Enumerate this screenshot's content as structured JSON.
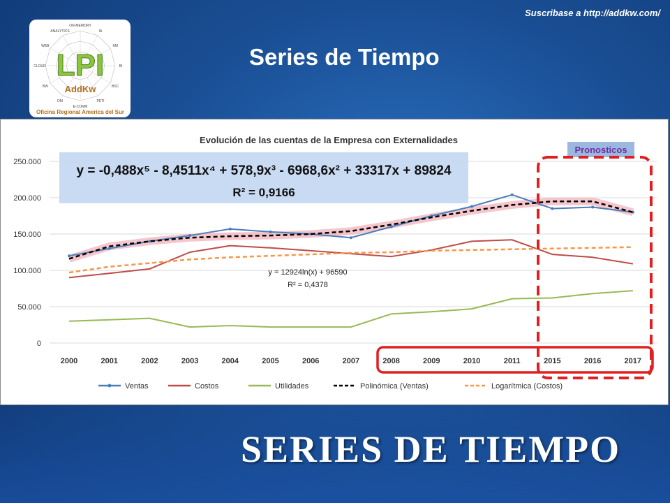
{
  "header": {
    "subscribe_text": "Suscribase a http://addkw.com/",
    "title": "Series de Tiempo"
  },
  "logo": {
    "brand": "LPI",
    "sub": "AddKw",
    "office": "Oficina Regional America del Sur",
    "radar_labels": [
      "ON-MEMORY",
      "IA",
      "KM",
      "BI",
      "BSC",
      "PETI",
      "E-COMM",
      "DM",
      "BW",
      "CLOUD",
      "WEB",
      "ANALYTICS"
    ]
  },
  "footer": {
    "big_title": "SERIES DE TIEMPO"
  },
  "colors": {
    "ventas": "#4a7ebb",
    "costos": "#be4b48",
    "utilidades": "#98b954",
    "polinomica": "#000000",
    "logaritmica": "#f79646",
    "forecast_box": "#e02020"
  },
  "chart_data": {
    "type": "line",
    "title": "Evolución de las cuentas de la Empresa con Externalidades",
    "categories": [
      "2000",
      "2001",
      "2002",
      "2003",
      "2004",
      "2005",
      "2006",
      "2007",
      "2008",
      "2009",
      "2010",
      "2011",
      "2015",
      "2016",
      "2017"
    ],
    "y_ticks": [
      "0",
      "50.000",
      "100.000",
      "150.000",
      "200.000",
      "250.000"
    ],
    "ylim": [
      0,
      250000
    ],
    "series": [
      {
        "name": "Ventas",
        "style": "solid",
        "values": [
          120000,
          130000,
          140000,
          148000,
          157000,
          153000,
          150000,
          145000,
          160000,
          175000,
          188000,
          204000,
          185000,
          187000,
          180000
        ]
      },
      {
        "name": "Costos",
        "style": "solid",
        "values": [
          90000,
          96000,
          102000,
          125000,
          134000,
          131000,
          127000,
          123000,
          119000,
          128000,
          140000,
          142000,
          122000,
          118000,
          109000
        ]
      },
      {
        "name": "Utilidades",
        "style": "solid",
        "values": [
          30000,
          32000,
          34000,
          22000,
          24000,
          22000,
          22000,
          22000,
          40000,
          43000,
          47000,
          61000,
          62000,
          68000,
          72000
        ]
      },
      {
        "name": "Polinómica (Ventas)",
        "style": "dashed",
        "values": [
          116000,
          133000,
          140000,
          145000,
          147000,
          148000,
          150000,
          154000,
          163000,
          173000,
          182000,
          190000,
          195000,
          195000,
          180000
        ]
      },
      {
        "name": "Logarítmica (Costos)",
        "style": "dashed",
        "values": [
          97000,
          105000,
          110000,
          115000,
          118000,
          120000,
          122000,
          124000,
          125000,
          127000,
          128000,
          129000,
          130000,
          131000,
          132000
        ]
      }
    ],
    "annotations": {
      "poly_equation": "y = -0,488x⁵ - 8,4511x⁴ + 578,9x³ - 6968,6x² + 33317x + 89824",
      "poly_r2": "R² = 0,9166",
      "log_equation": "y = 12924ln(x) + 96590",
      "log_r2": "R² = 0,4378",
      "forecast_label": "Pronosticos"
    },
    "legend_position": "bottom"
  }
}
